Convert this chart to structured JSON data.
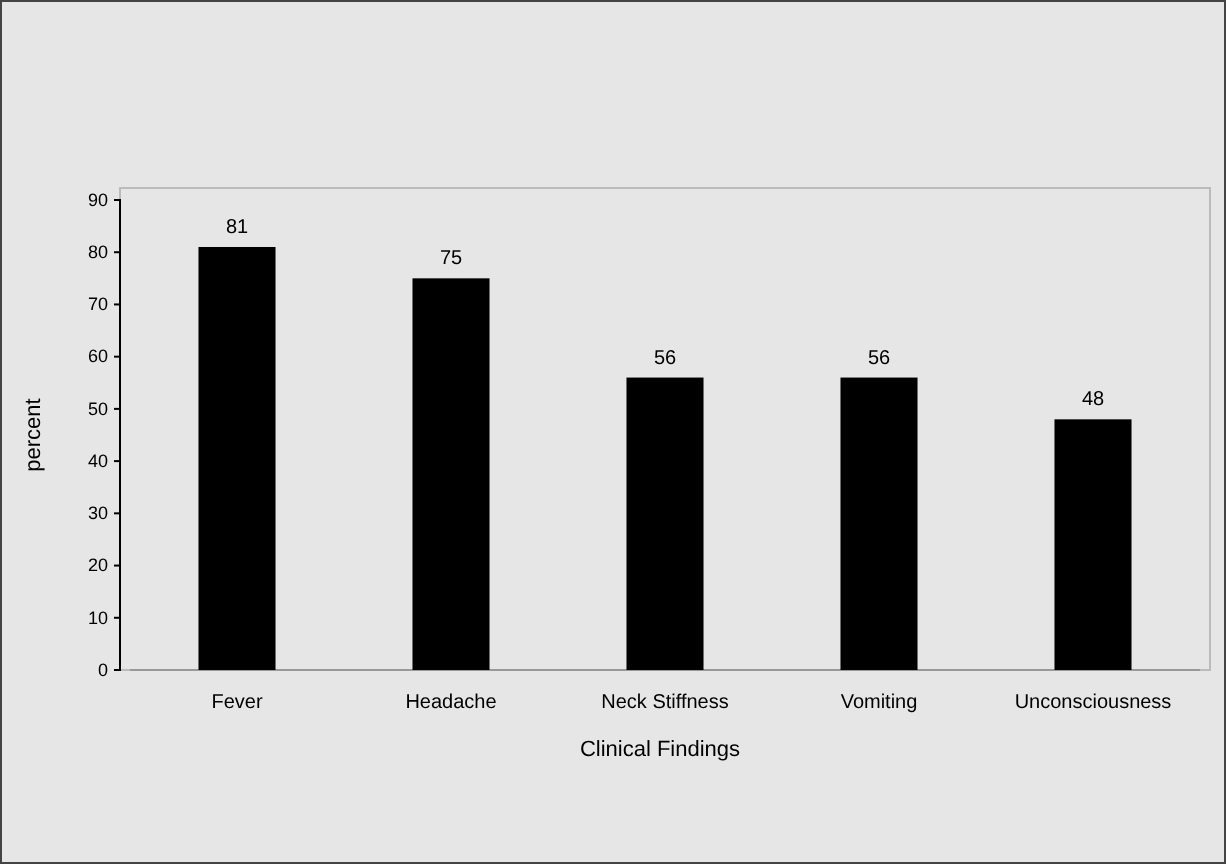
{
  "chart_data": {
    "type": "bar",
    "xlabel": "Clinical Findings",
    "ylabel": "percent",
    "categories": [
      "Fever",
      "Headache",
      "Neck Stiffness",
      "Vomiting",
      "Unconsciousness"
    ],
    "values": [
      81,
      75,
      56,
      56,
      48
    ],
    "color": "#000000",
    "ylim": [
      0,
      90
    ],
    "yticks": [
      0,
      10,
      20,
      30,
      40,
      50,
      60,
      70,
      80,
      90
    ],
    "data_labels": true,
    "grid": false
  }
}
